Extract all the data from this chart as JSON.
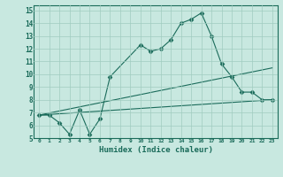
{
  "title": "",
  "xlabel": "Humidex (Indice chaleur)",
  "ylabel": "",
  "bg_color": "#c8e8e0",
  "grid_color": "#a0ccc0",
  "line_color": "#1a6b5a",
  "xlim": [
    -0.5,
    23.5
  ],
  "ylim": [
    5,
    15.4
  ],
  "yticks": [
    5,
    6,
    7,
    8,
    9,
    10,
    11,
    12,
    13,
    14,
    15
  ],
  "xticks": [
    0,
    1,
    2,
    3,
    4,
    5,
    6,
    7,
    8,
    9,
    10,
    11,
    12,
    13,
    14,
    15,
    16,
    17,
    18,
    19,
    20,
    21,
    22,
    23
  ],
  "series": [
    {
      "x": [
        0,
        1,
        2,
        3,
        4,
        5,
        6,
        7,
        10,
        11,
        12,
        13,
        14,
        15,
        16,
        17,
        18,
        19,
        20,
        21,
        22,
        23
      ],
      "y": [
        6.8,
        6.8,
        6.2,
        5.3,
        7.2,
        5.3,
        6.5,
        9.8,
        12.3,
        11.8,
        12.0,
        12.7,
        14.0,
        14.3,
        14.8,
        13.0,
        10.8,
        9.8,
        8.6,
        8.6,
        8.0,
        8.0
      ],
      "marker": true
    },
    {
      "x": [
        0,
        23
      ],
      "y": [
        6.8,
        10.5
      ],
      "marker": false
    },
    {
      "x": [
        0,
        23
      ],
      "y": [
        6.8,
        8.0
      ],
      "marker": false
    }
  ]
}
